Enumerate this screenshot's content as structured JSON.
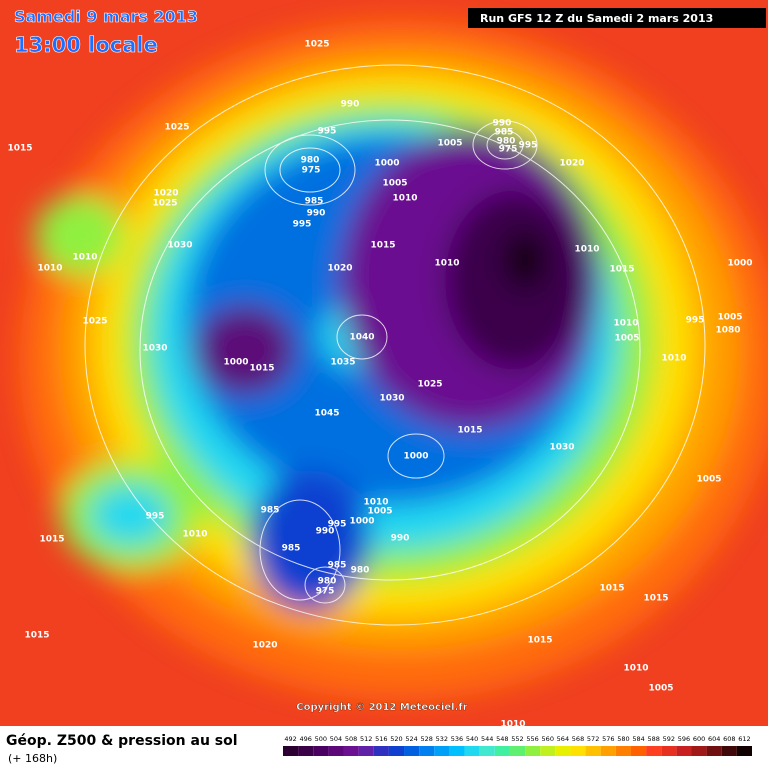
{
  "header": {
    "date": "Samedi 9 mars 2013",
    "time": "13:00 locale",
    "run": "Run GFS 12 Z du Samedi 2 mars 2013"
  },
  "copyright": "Copyright © 2012 Meteociel.fr",
  "legend": {
    "title": "Géop. Z500 & pression au sol",
    "subtitle": "(+ 168h)",
    "values": [
      492,
      496,
      500,
      504,
      508,
      512,
      516,
      520,
      524,
      528,
      532,
      536,
      540,
      544,
      548,
      552,
      556,
      560,
      564,
      568,
      572,
      576,
      580,
      584,
      588,
      592,
      596,
      600,
      604,
      608,
      612
    ],
    "colors": [
      "#2b0030",
      "#3a0048",
      "#4a0060",
      "#5c0878",
      "#6a1090",
      "#6020a8",
      "#3030c0",
      "#1040d0",
      "#0060e0",
      "#0080f0",
      "#00a0f8",
      "#00c0ff",
      "#20d8f0",
      "#40e8d0",
      "#40f0a0",
      "#60f070",
      "#90f040",
      "#c0f020",
      "#e8f000",
      "#ffe000",
      "#ffc000",
      "#ffa000",
      "#ff8000",
      "#ff6000",
      "#ff4020",
      "#e83020",
      "#c82020",
      "#a01818",
      "#701010",
      "#400808",
      "#100000"
    ]
  },
  "pressure_labels": [
    "1025",
    "1025",
    "1015",
    "990",
    "995",
    "980",
    "975",
    "1000",
    "1005",
    "1010",
    "985",
    "990",
    "995",
    "1020",
    "1025",
    "1030",
    "1010",
    "1010",
    "1025",
    "1030",
    "1000",
    "1015",
    "1040",
    "1035",
    "1020",
    "1015",
    "1010",
    "1025",
    "1030",
    "1045",
    "1000",
    "1015",
    "1030",
    "1005",
    "990",
    "985",
    "980",
    "975",
    "995",
    "1020",
    "1010",
    "1015",
    "1000",
    "1010",
    "1005",
    "995",
    "1005",
    "1080",
    "1010",
    "1005",
    "995",
    "1010",
    "1015",
    "985",
    "990",
    "995",
    "1000",
    "1005",
    "1010",
    "990",
    "985",
    "980",
    "975",
    "985",
    "980",
    "1015",
    "1020",
    "1015",
    "1015",
    "1015",
    "1010",
    "1005",
    "1010"
  ]
}
